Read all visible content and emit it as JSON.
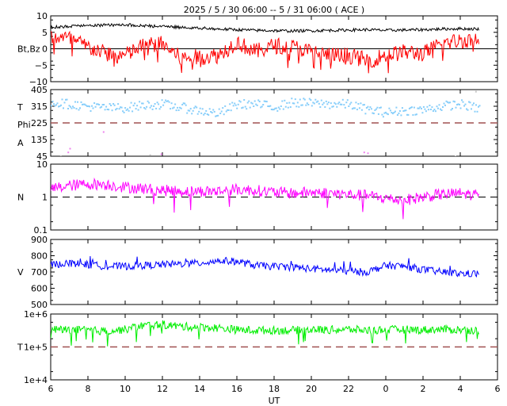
{
  "title": "2025 /  5 / 30   06:00 --  5 / 31   06:00 ( ACE )",
  "xlabel": "UT",
  "xticks": [
    "6",
    "8",
    "10",
    "12",
    "14",
    "16",
    "18",
    "20",
    "22",
    "0",
    "2",
    "4",
    "6"
  ],
  "colors": {
    "bt": "#000000",
    "bz": "#ff0000",
    "phi": "#87cefa",
    "phi_alt_toward": "#ee82ee",
    "phi_alt_gray": "#c0c0c0",
    "density": "#ff00ff",
    "speed": "#0000ff",
    "temperature": "#00ee00",
    "reference": "#a05050"
  },
  "chart_data": [
    {
      "type": "line",
      "panel": "magnetic field",
      "ylabel": "Bt,Bz",
      "yticks": [
        "10",
        "5",
        "0",
        "−5",
        "−10"
      ],
      "ylim": [
        -10,
        10
      ],
      "x_hours": [
        6,
        7,
        8,
        9,
        10,
        11,
        12,
        13,
        14,
        15,
        16,
        17,
        18,
        19,
        20,
        21,
        22,
        23,
        24,
        25,
        26,
        27,
        28,
        29
      ],
      "series": [
        {
          "name": "Bt",
          "values": [
            6.5,
            6.8,
            7.0,
            7.2,
            7.3,
            7.0,
            6.8,
            6.5,
            6.3,
            6.0,
            5.8,
            5.6,
            5.5,
            5.4,
            5.5,
            5.6,
            5.7,
            5.8,
            5.6,
            5.7,
            5.8,
            6.0,
            6.1,
            6.0
          ]
        },
        {
          "name": "Bz",
          "values": [
            4.0,
            3.0,
            0.5,
            -1.5,
            -2.0,
            1.0,
            1.5,
            -3.0,
            -2.5,
            -2.0,
            2.0,
            -1.0,
            1.0,
            0.5,
            -1.0,
            -2.0,
            -2.0,
            -3.5,
            -2.0,
            -1.0,
            -1.5,
            1.5,
            2.5,
            3.0
          ]
        }
      ]
    },
    {
      "type": "scatter",
      "panel": "IMF direction",
      "ylabel_lines": [
        "T",
        "Phi",
        "A"
      ],
      "yticks": [
        "405",
        "315",
        "225",
        "135",
        "45"
      ],
      "ylim": [
        45,
        405
      ],
      "reference_value": 225,
      "x_hours": [
        6,
        7,
        8,
        9,
        10,
        11,
        12,
        13,
        14,
        15,
        16,
        17,
        18,
        19,
        20,
        21,
        22,
        23,
        24,
        25,
        26,
        27,
        28,
        29
      ],
      "values": [
        340,
        330,
        318,
        310,
        310,
        325,
        330,
        312,
        295,
        280,
        330,
        330,
        315,
        340,
        335,
        330,
        330,
        300,
        285,
        295,
        300,
        320,
        330,
        305
      ]
    },
    {
      "type": "line",
      "panel": "density",
      "ylabel": "N",
      "yticks": [
        "10",
        "1",
        "0.1"
      ],
      "yscale": "log",
      "ylim": [
        0.1,
        10
      ],
      "reference_value": 1,
      "x_hours": [
        6,
        7,
        8,
        9,
        10,
        11,
        12,
        13,
        14,
        15,
        16,
        17,
        18,
        19,
        20,
        21,
        22,
        23,
        24,
        25,
        26,
        27,
        28,
        29
      ],
      "values": [
        1.8,
        2.2,
        2.5,
        2.4,
        2.0,
        1.8,
        1.6,
        1.5,
        1.5,
        1.5,
        1.7,
        1.6,
        1.4,
        1.3,
        1.4,
        1.3,
        1.2,
        1.1,
        0.9,
        0.8,
        1.0,
        1.2,
        1.3,
        1.1
      ]
    },
    {
      "type": "line",
      "panel": "speed",
      "ylabel": "V",
      "yticks": [
        "900",
        "800",
        "700",
        "600",
        "500"
      ],
      "ylim": [
        500,
        900
      ],
      "x_hours": [
        6,
        7,
        8,
        9,
        10,
        11,
        12,
        13,
        14,
        15,
        16,
        17,
        18,
        19,
        20,
        21,
        22,
        23,
        24,
        25,
        26,
        27,
        28,
        29
      ],
      "values": [
        745,
        755,
        745,
        735,
        735,
        740,
        745,
        750,
        755,
        770,
        765,
        740,
        735,
        730,
        720,
        712,
        705,
        700,
        740,
        735,
        715,
        700,
        690,
        690
      ]
    },
    {
      "type": "line",
      "panel": "temperature",
      "ylabel": "T",
      "yticks": [
        "1e+6",
        "1e+5",
        "1e+4"
      ],
      "yscale": "log",
      "ylim": [
        10000,
        1000000
      ],
      "reference_value": 100000,
      "x_hours": [
        6,
        7,
        8,
        9,
        10,
        11,
        12,
        13,
        14,
        15,
        16,
        17,
        18,
        19,
        20,
        21,
        22,
        23,
        24,
        25,
        26,
        27,
        28,
        29
      ],
      "values": [
        340000,
        330000,
        320000,
        300000,
        340000,
        450000,
        480000,
        420000,
        400000,
        380000,
        330000,
        320000,
        320000,
        320000,
        340000,
        330000,
        340000,
        320000,
        330000,
        340000,
        330000,
        340000,
        330000,
        320000
      ]
    }
  ]
}
